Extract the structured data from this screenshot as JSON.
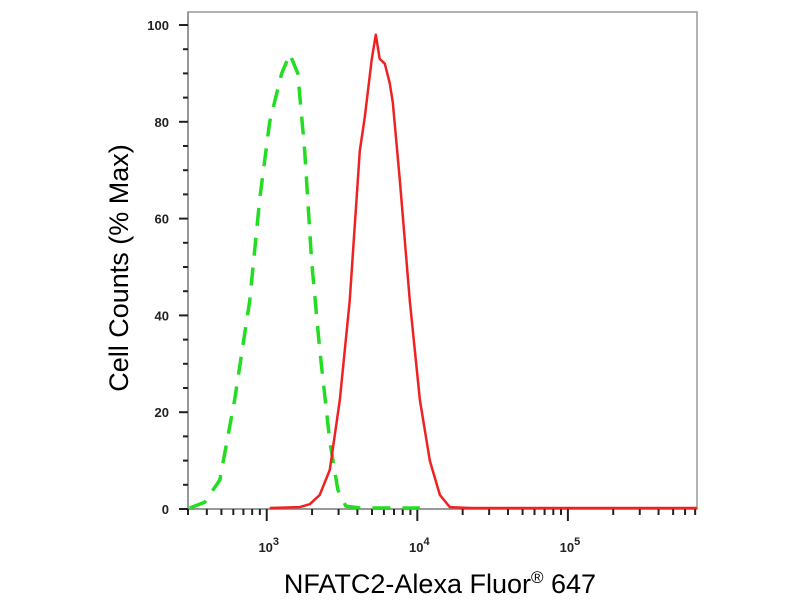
{
  "chart_data": {
    "type": "line",
    "title": "",
    "xlabel": "NFATC2-Alexa Fluor® 647",
    "ylabel": "Cell Counts (% Max)",
    "xscale": "log",
    "xlim": [
      300,
      720000
    ],
    "ylim": [
      0,
      100
    ],
    "yticks": [
      0,
      20,
      40,
      60,
      80,
      100
    ],
    "xticks": [
      {
        "value": 1000,
        "base": "10",
        "exp": "3"
      },
      {
        "value": 10000,
        "base": "10",
        "exp": "4"
      },
      {
        "value": 100000,
        "base": "10",
        "exp": "5"
      }
    ],
    "grid": false,
    "legend": "none",
    "series": [
      {
        "color": "#22dd22",
        "style": "dashed",
        "x": [
          308,
          387,
          488,
          612,
          771,
          898,
          1047,
          1258,
          1422,
          1607,
          1787,
          1990,
          2249,
          2623,
          2965,
          3350,
          4150,
          10400
        ],
        "y": [
          0.2,
          1.4,
          6,
          22.5,
          43,
          64,
          80,
          90,
          94,
          90,
          74,
          51,
          33,
          14,
          4,
          0.6,
          0.2,
          0.2
        ]
      },
      {
        "color": "#ee2222",
        "style": "solid",
        "x": [
          1047,
          1656,
          1932,
          2249,
          2623,
          3055,
          3556,
          4150,
          4480,
          4987,
          5300,
          5630,
          6080,
          6560,
          6870,
          7650,
          8920,
          10400,
          12110,
          14120,
          16440,
          22340,
          719000
        ],
        "y": [
          0.2,
          0.4,
          1,
          2.9,
          8.1,
          22.5,
          43,
          74,
          81,
          93,
          98,
          93,
          92,
          88,
          84,
          68,
          43,
          22.5,
          10,
          2.9,
          0.4,
          0.2,
          0.2
        ]
      }
    ]
  }
}
